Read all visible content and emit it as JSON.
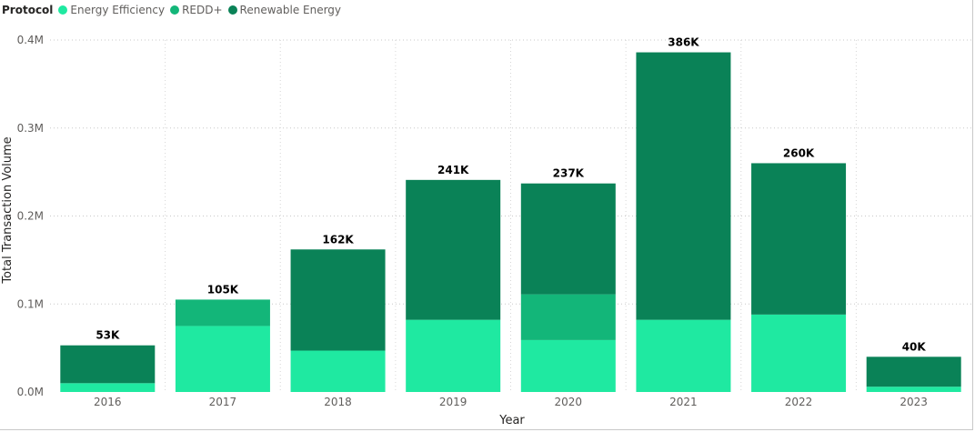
{
  "chart_data": {
    "type": "bar",
    "stacked": true,
    "legend_title": "Protocol",
    "legend_position": "top-left",
    "xlabel": "Year",
    "ylabel": "Total Transaction Volume",
    "categories": [
      "2016",
      "2017",
      "2018",
      "2019",
      "2020",
      "2021",
      "2022",
      "2023"
    ],
    "ylim": [
      0,
      400000
    ],
    "y_ticks": [
      0,
      100000,
      200000,
      300000,
      400000
    ],
    "y_tick_labels": [
      "0.0M",
      "0.1M",
      "0.2M",
      "0.3M",
      "0.4M"
    ],
    "gridlines": true,
    "series": [
      {
        "name": "Energy Efficiency",
        "color": "#1fe9a1",
        "values": [
          10000,
          75000,
          47000,
          82000,
          59000,
          82000,
          88000,
          6000
        ]
      },
      {
        "name": "REDD+",
        "color": "#13b679",
        "values": [
          0,
          30000,
          0,
          0,
          52000,
          0,
          0,
          0
        ]
      },
      {
        "name": "Renewable Energy",
        "color": "#0a8257",
        "values": [
          43000,
          0,
          115000,
          159000,
          126000,
          304000,
          172000,
          34000
        ]
      }
    ],
    "totals": [
      53000,
      105000,
      162000,
      241000,
      237000,
      386000,
      260000,
      40000
    ],
    "total_labels": [
      "53K",
      "105K",
      "162K",
      "241K",
      "237K",
      "386K",
      "260K",
      "40K"
    ]
  }
}
